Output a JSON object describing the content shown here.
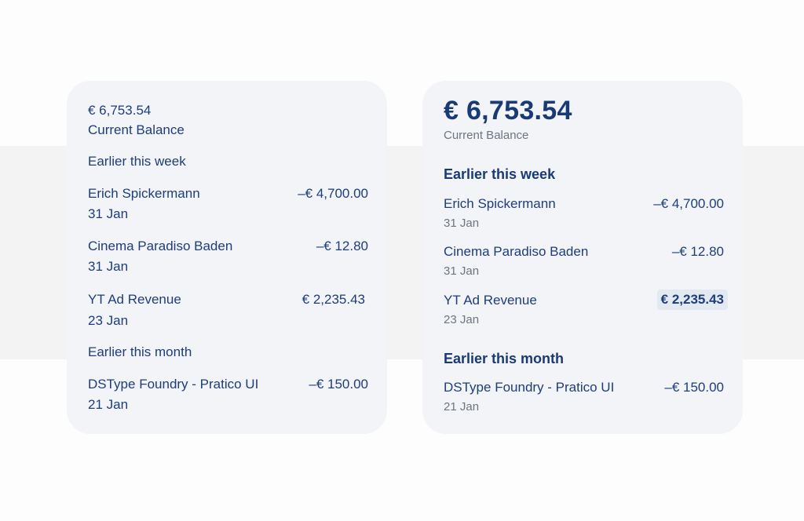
{
  "card_plain": {
    "balance": "€ 6,753.54",
    "balance_label": "Current Balance",
    "sections": [
      {
        "title": "Earlier this week",
        "items": [
          {
            "name": "Erich Spickermann",
            "date": "31 Jan",
            "amount": "–€ 4,700.00"
          },
          {
            "name": "Cinema Paradiso Baden",
            "date": "31 Jan",
            "amount": "–€ 12.80"
          },
          {
            "name": "YT Ad Revenue",
            "date": "23 Jan",
            "amount": "€ 2,235.43"
          }
        ]
      },
      {
        "title": "Earlier this month",
        "items": [
          {
            "name": "DSType Foundry - Pratico UI",
            "date": "21 Jan",
            "amount": "–€ 150.00"
          }
        ]
      }
    ]
  },
  "card_styled": {
    "balance": "€ 6,753.54",
    "balance_label": "Current Balance",
    "sections": [
      {
        "title": "Earlier this week",
        "items": [
          {
            "name": "Erich Spickermann",
            "date": "31 Jan",
            "amount": "–€ 4,700.00"
          },
          {
            "name": "Cinema Paradiso Baden",
            "date": "31 Jan",
            "amount": "–€ 12.80"
          },
          {
            "name": "YT Ad Revenue",
            "date": "23 Jan",
            "amount": "€ 2,235.43"
          }
        ]
      },
      {
        "title": "Earlier this month",
        "items": [
          {
            "name": "DSType Foundry - Pratico UI",
            "date": "21 Jan",
            "amount": "–€ 150.00"
          }
        ]
      }
    ]
  },
  "colors": {
    "navy": "#1e3d7b",
    "grey_text": "#6e7580",
    "card_bg": "#f2f4f7",
    "highlight_bg": "#e3e9f1"
  }
}
